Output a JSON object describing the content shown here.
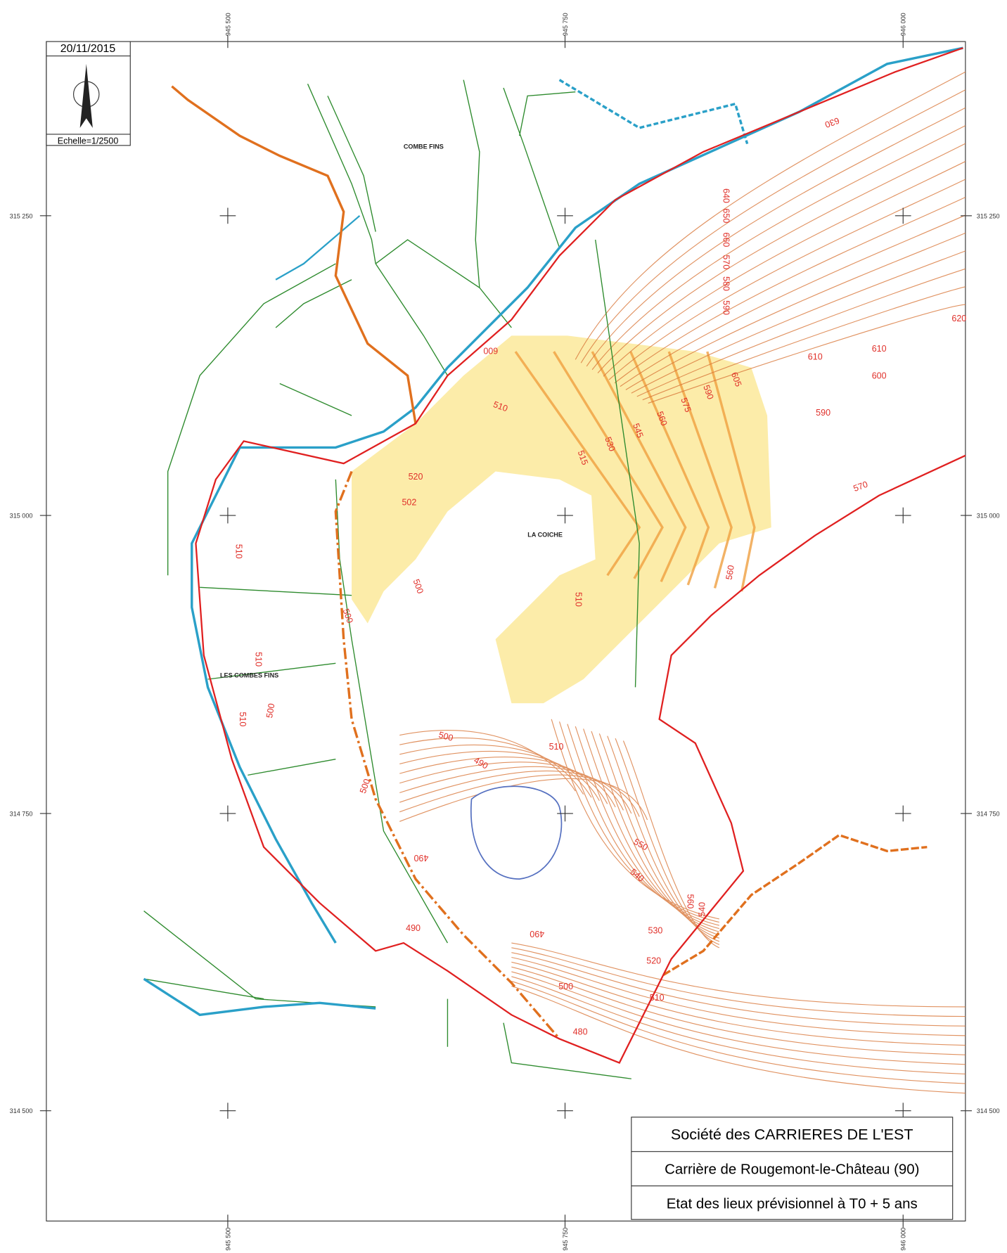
{
  "header": {
    "date": "20/11/2015",
    "scale": "Echelle=1/2500"
  },
  "grid": {
    "x_labels": [
      "945 500",
      "945 750",
      "946 000"
    ],
    "y_labels": [
      "315 250",
      "315 000",
      "314 750",
      "314 500"
    ]
  },
  "places": [
    "COMBE FINS",
    "LA COICHE",
    "LES COMBES FINS"
  ],
  "contour_labels": [
    630,
    640,
    650,
    660,
    570,
    580,
    590,
    620,
    610,
    610,
    600,
    590,
    570,
    605,
    590,
    575,
    560,
    545,
    530,
    515,
    510,
    520,
    502,
    500,
    500,
    510,
    510,
    510,
    500,
    500,
    490,
    510,
    500,
    490,
    490,
    490,
    500,
    480,
    550,
    540,
    530,
    520,
    510,
    560,
    540,
    600,
    560,
    510
  ],
  "title_block": {
    "company": "Société des CARRIERES DE L'EST",
    "site": "Carrière de Rougemont-le-Château (90)",
    "state": "Etat des lieux prévisionnel à T0 + 5 ans"
  }
}
